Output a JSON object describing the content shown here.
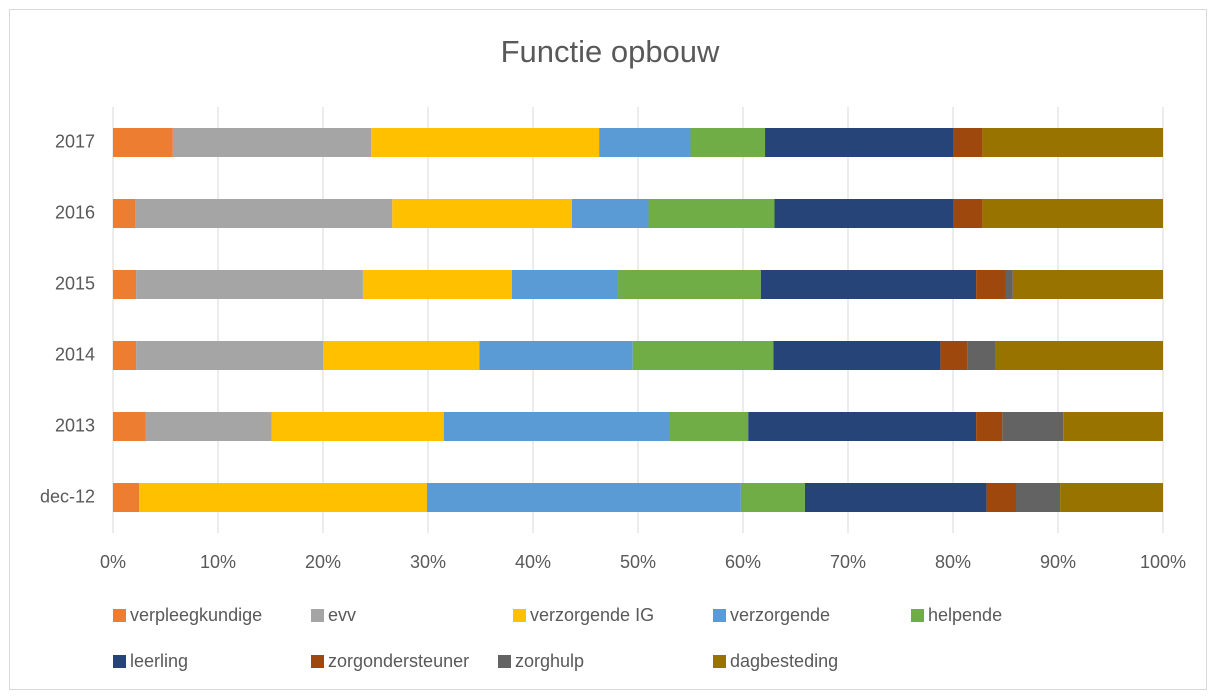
{
  "chart_data": {
    "type": "stacked_bar_horizontal",
    "title": "Functie opbouw",
    "categories": [
      "dec-12",
      "2013",
      "2014",
      "2015",
      "2016",
      "2017"
    ],
    "series": [
      {
        "name": "verpleegkundige",
        "color": "#ed7d31",
        "values": [
          2.5,
          3.1,
          2.2,
          2.2,
          2.1,
          5.7
        ]
      },
      {
        "name": "evv",
        "color": "#a5a5a5",
        "values": [
          0,
          12.0,
          17.8,
          21.6,
          24.5,
          18.9
        ]
      },
      {
        "name": "verzorgende IG",
        "color": "#ffc000",
        "values": [
          27.4,
          16.4,
          14.9,
          14.2,
          17.1,
          21.7
        ]
      },
      {
        "name": "verzorgende",
        "color": "#5b9bd5",
        "values": [
          29.9,
          21.5,
          14.6,
          10.1,
          7.3,
          8.7
        ]
      },
      {
        "name": "helpende",
        "color": "#70ad47",
        "values": [
          6.1,
          7.5,
          13.4,
          13.6,
          12.0,
          7.1
        ]
      },
      {
        "name": "leerling",
        "color": "#264478",
        "values": [
          17.3,
          21.7,
          15.9,
          20.5,
          17.0,
          17.9
        ]
      },
      {
        "name": "zorgondersteuner",
        "color": "#9e480e",
        "values": [
          2.8,
          2.5,
          2.6,
          2.8,
          2.8,
          2.8
        ]
      },
      {
        "name": "zorghulp",
        "color": "#636363",
        "values": [
          4.2,
          5.8,
          2.6,
          0.7,
          0,
          0
        ]
      },
      {
        "name": "dagbesteding",
        "color": "#997300",
        "values": [
          9.8,
          9.5,
          16.0,
          14.3,
          17.2,
          17.2
        ]
      }
    ],
    "xlim": [
      0,
      100
    ],
    "xticks": [
      {
        "value": 0,
        "label": "0%"
      },
      {
        "value": 10,
        "label": "10%"
      },
      {
        "value": 20,
        "label": "20%"
      },
      {
        "value": 30,
        "label": "30%"
      },
      {
        "value": 40,
        "label": "40%"
      },
      {
        "value": 50,
        "label": "50%"
      },
      {
        "value": 60,
        "label": "60%"
      },
      {
        "value": 70,
        "label": "70%"
      },
      {
        "value": 80,
        "label": "80%"
      },
      {
        "value": 90,
        "label": "90%"
      },
      {
        "value": 100,
        "label": "100%"
      }
    ],
    "grid": true,
    "legend": "bottom"
  }
}
